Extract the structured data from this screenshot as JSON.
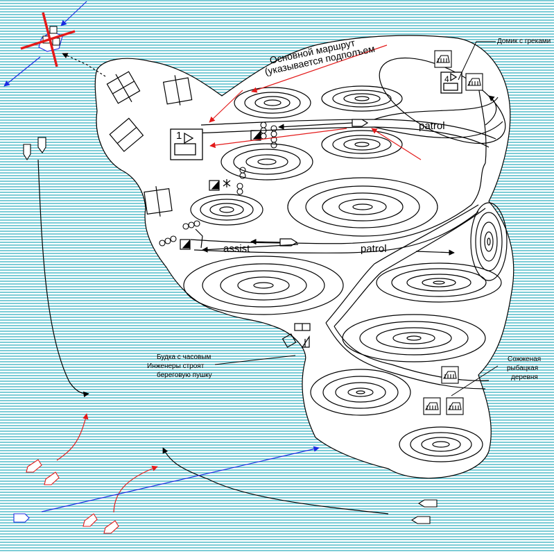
{
  "colors": {
    "sea_line": "#35b0c0",
    "sea_bg": "#ffffff",
    "ink": "#000000",
    "red": "#e31a1a",
    "blue": "#1a2ae3"
  },
  "labels": {
    "main_route_1": "Основной маршрут",
    "main_route_2": "(указывается подполъем",
    "patrol_top": "patrol",
    "patrol_bottom": "patrol",
    "assist": "assist",
    "house_greeks": "Домик с греками",
    "booth_1": "Будка с часовым",
    "booth_2": "Инженеры строят",
    "booth_3": "береговую пушку",
    "village_1": "Сожженая",
    "village_2": "рыбацкая",
    "village_3": "деревня",
    "unit_1": "1",
    "unit_4": "4"
  },
  "icons": {
    "house": "house-icon",
    "unit": "unit-box-icon",
    "ship": "ship-icon",
    "hill": "contour-hill-icon",
    "wire": "barbed-wire-icon",
    "flag": "flag-icon",
    "cross": "destroyed-cross-icon"
  }
}
